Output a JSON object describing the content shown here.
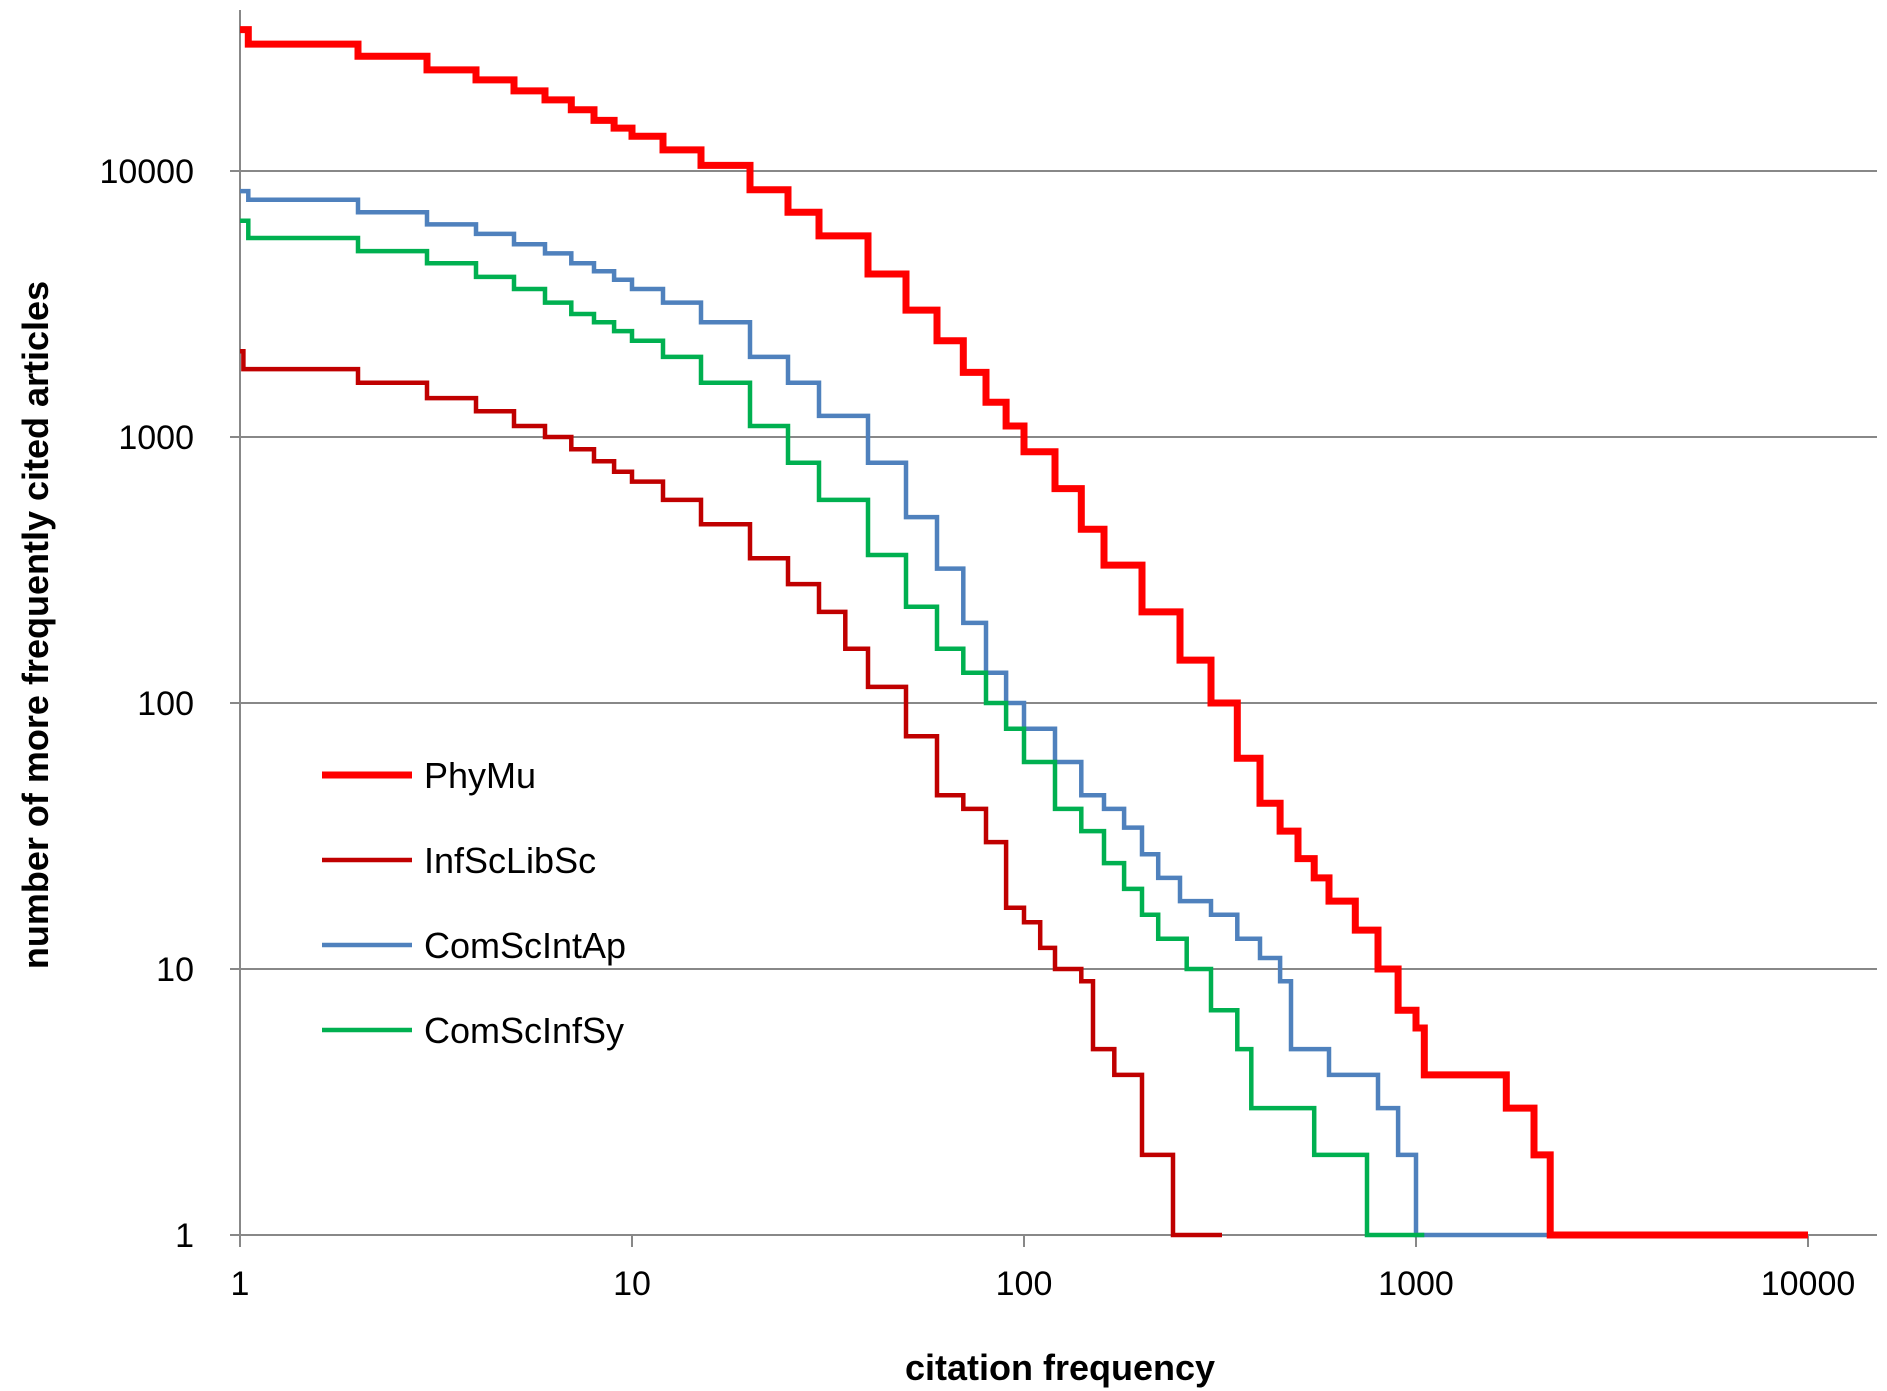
{
  "chart_data": {
    "type": "line",
    "title": "",
    "xlabel": "citation frequency",
    "ylabel": "number of more frequently cited articles",
    "x_scale": "log",
    "y_scale": "log",
    "xlim": [
      1,
      10000
    ],
    "ylim": [
      1,
      40000
    ],
    "x_ticks": [
      "1",
      "10",
      "100",
      "1000",
      "10000"
    ],
    "y_ticks": [
      "1",
      "10",
      "100",
      "1000",
      "10000"
    ],
    "grid": "horizontal major gridlines on y",
    "legend_position": "left-center inside plot",
    "colors": {
      "PhyMu": "#ff0000",
      "InfScLibSc": "#c00000",
      "ComScIntAp": "#4f81bd",
      "ComScInfSy": "#00b050",
      "grid": "#888888",
      "axis": "#888888"
    },
    "series": [
      {
        "name": "PhyMu",
        "step": true,
        "points": [
          [
            1,
            34000
          ],
          [
            1.05,
            30000
          ],
          [
            2,
            27000
          ],
          [
            3,
            24000
          ],
          [
            4,
            22000
          ],
          [
            5,
            20000
          ],
          [
            6,
            18500
          ],
          [
            7,
            17000
          ],
          [
            8,
            15500
          ],
          [
            9,
            14500
          ],
          [
            10,
            13500
          ],
          [
            12,
            12000
          ],
          [
            15,
            10500
          ],
          [
            20,
            8500
          ],
          [
            25,
            7000
          ],
          [
            30,
            5700
          ],
          [
            40,
            4100
          ],
          [
            50,
            3000
          ],
          [
            60,
            2300
          ],
          [
            70,
            1750
          ],
          [
            80,
            1350
          ],
          [
            90,
            1100
          ],
          [
            100,
            880
          ],
          [
            120,
            640
          ],
          [
            140,
            450
          ],
          [
            160,
            330
          ],
          [
            200,
            220
          ],
          [
            250,
            145
          ],
          [
            300,
            100
          ],
          [
            350,
            62
          ],
          [
            400,
            42
          ],
          [
            450,
            33
          ],
          [
            500,
            26
          ],
          [
            550,
            22
          ],
          [
            600,
            18
          ],
          [
            700,
            14
          ],
          [
            800,
            10
          ],
          [
            900,
            7
          ],
          [
            1000,
            6
          ],
          [
            1050,
            4
          ],
          [
            1700,
            3
          ],
          [
            2000,
            2
          ],
          [
            2200,
            1
          ],
          [
            10000,
            1
          ]
        ]
      },
      {
        "name": "InfScLibSc",
        "step": true,
        "points": [
          [
            1,
            2100
          ],
          [
            1.02,
            1800
          ],
          [
            2,
            1600
          ],
          [
            3,
            1400
          ],
          [
            4,
            1250
          ],
          [
            5,
            1100
          ],
          [
            6,
            1000
          ],
          [
            7,
            900
          ],
          [
            8,
            810
          ],
          [
            9,
            740
          ],
          [
            10,
            680
          ],
          [
            12,
            580
          ],
          [
            15,
            470
          ],
          [
            20,
            350
          ],
          [
            25,
            280
          ],
          [
            30,
            220
          ],
          [
            35,
            160
          ],
          [
            40,
            115
          ],
          [
            50,
            75
          ],
          [
            60,
            45
          ],
          [
            70,
            40
          ],
          [
            80,
            30
          ],
          [
            90,
            17
          ],
          [
            100,
            15
          ],
          [
            110,
            12
          ],
          [
            120,
            10
          ],
          [
            140,
            9
          ],
          [
            150,
            5
          ],
          [
            170,
            4
          ],
          [
            200,
            2
          ],
          [
            240,
            1
          ],
          [
            320,
            1
          ]
        ]
      },
      {
        "name": "ComScIntAp",
        "step": true,
        "points": [
          [
            1,
            8400
          ],
          [
            1.05,
            7800
          ],
          [
            2,
            7000
          ],
          [
            3,
            6300
          ],
          [
            4,
            5800
          ],
          [
            5,
            5300
          ],
          [
            6,
            4900
          ],
          [
            7,
            4500
          ],
          [
            8,
            4200
          ],
          [
            9,
            3900
          ],
          [
            10,
            3600
          ],
          [
            12,
            3200
          ],
          [
            15,
            2700
          ],
          [
            20,
            2000
          ],
          [
            25,
            1600
          ],
          [
            30,
            1200
          ],
          [
            40,
            800
          ],
          [
            50,
            500
          ],
          [
            60,
            320
          ],
          [
            70,
            200
          ],
          [
            80,
            130
          ],
          [
            90,
            100
          ],
          [
            100,
            80
          ],
          [
            120,
            60
          ],
          [
            140,
            45
          ],
          [
            160,
            40
          ],
          [
            180,
            34
          ],
          [
            200,
            27
          ],
          [
            220,
            22
          ],
          [
            250,
            18
          ],
          [
            300,
            16
          ],
          [
            350,
            13
          ],
          [
            400,
            11
          ],
          [
            450,
            9
          ],
          [
            480,
            5
          ],
          [
            600,
            4
          ],
          [
            800,
            3
          ],
          [
            900,
            2
          ],
          [
            1000,
            1
          ],
          [
            8000,
            1
          ]
        ]
      },
      {
        "name": "ComScInfSy",
        "step": true,
        "points": [
          [
            1,
            6500
          ],
          [
            1.05,
            5600
          ],
          [
            2,
            5000
          ],
          [
            3,
            4500
          ],
          [
            4,
            4000
          ],
          [
            5,
            3600
          ],
          [
            6,
            3200
          ],
          [
            7,
            2900
          ],
          [
            8,
            2700
          ],
          [
            9,
            2500
          ],
          [
            10,
            2300
          ],
          [
            12,
            2000
          ],
          [
            15,
            1600
          ],
          [
            20,
            1100
          ],
          [
            25,
            800
          ],
          [
            30,
            580
          ],
          [
            40,
            360
          ],
          [
            50,
            230
          ],
          [
            60,
            160
          ],
          [
            70,
            130
          ],
          [
            80,
            100
          ],
          [
            90,
            80
          ],
          [
            100,
            60
          ],
          [
            120,
            40
          ],
          [
            140,
            33
          ],
          [
            160,
            25
          ],
          [
            180,
            20
          ],
          [
            200,
            16
          ],
          [
            220,
            13
          ],
          [
            260,
            10
          ],
          [
            300,
            7
          ],
          [
            350,
            5
          ],
          [
            380,
            3
          ],
          [
            550,
            2
          ],
          [
            750,
            1
          ],
          [
            1050,
            1
          ]
        ]
      }
    ]
  }
}
